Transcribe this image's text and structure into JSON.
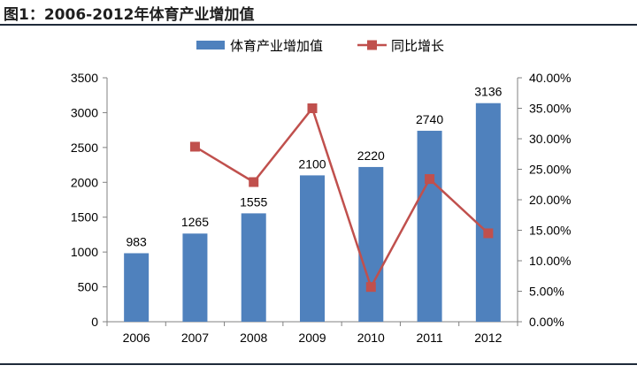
{
  "figure": {
    "title": "图1：2006-2012年体育产业增加值"
  },
  "chart_data": {
    "type": "bar",
    "categories": [
      "2006",
      "2007",
      "2008",
      "2009",
      "2010",
      "2011",
      "2012"
    ],
    "series": [
      {
        "name": "体育产业增加值",
        "type": "bar",
        "axis": "left",
        "color": "#4f81bd",
        "values": [
          983,
          1265,
          1555,
          2100,
          2220,
          2740,
          3136
        ],
        "labels": [
          "983",
          "1265",
          "1555",
          "2100",
          "2220",
          "2740",
          "3136"
        ]
      },
      {
        "name": "同比增长",
        "type": "line",
        "axis": "right",
        "color": "#c0504d",
        "values": [
          null,
          28.7,
          22.9,
          35.0,
          5.7,
          23.4,
          14.5
        ]
      }
    ],
    "y_left": {
      "ylim": [
        0,
        3500
      ],
      "ticks": [
        0,
        500,
        1000,
        1500,
        2000,
        2500,
        3000,
        3500
      ],
      "tick_labels": [
        "0",
        "500",
        "1000",
        "1500",
        "2000",
        "2500",
        "3000",
        "3500"
      ]
    },
    "y_right": {
      "ylim": [
        0,
        40
      ],
      "ticks": [
        0,
        5,
        10,
        15,
        20,
        25,
        30,
        35,
        40
      ],
      "tick_labels": [
        "0.00%",
        "5.00%",
        "10.00%",
        "15.00%",
        "20.00%",
        "25.00%",
        "30.00%",
        "35.00%",
        "40.00%"
      ]
    },
    "xlabel": "",
    "ylabel": "",
    "grid": false,
    "legend_position": "top-center"
  }
}
